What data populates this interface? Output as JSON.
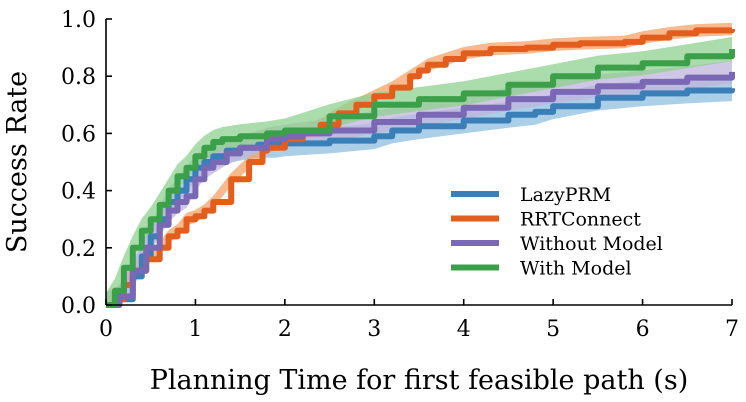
{
  "chart_data": {
    "type": "line",
    "title": "",
    "xlabel": "Planning Time for first feasible path (s)",
    "ylabel": "Success Rate",
    "xlim": [
      0,
      7
    ],
    "ylim": [
      0,
      1.0
    ],
    "xticks": [
      0,
      1,
      2,
      3,
      4,
      5,
      6,
      7
    ],
    "yticks": [
      0.0,
      0.2,
      0.4,
      0.6,
      0.8,
      1.0
    ],
    "xtick_labels": [
      "0",
      "1",
      "2",
      "3",
      "4",
      "5",
      "6",
      "7"
    ],
    "ytick_labels": [
      "0.0",
      "0.2",
      "0.4",
      "0.6",
      "0.8",
      "1.0"
    ],
    "grid": false,
    "legend_position": "lower-right",
    "series": [
      {
        "name": "LazyPRM",
        "color": "#3a7fb8",
        "band_color": "#8fbfdf",
        "band_halfwidth": 0.045,
        "x": [
          0,
          0.15,
          0.3,
          0.4,
          0.5,
          0.6,
          0.7,
          0.8,
          0.9,
          1.0,
          1.1,
          1.2,
          1.35,
          1.5,
          1.7,
          1.9,
          2.0,
          2.5,
          3.0,
          3.2,
          3.5,
          4.0,
          4.5,
          4.8,
          5.0,
          5.5,
          6.0,
          6.5,
          7.0
        ],
        "values": [
          0.0,
          0.02,
          0.1,
          0.17,
          0.24,
          0.3,
          0.36,
          0.4,
          0.44,
          0.48,
          0.5,
          0.52,
          0.54,
          0.55,
          0.56,
          0.56,
          0.565,
          0.575,
          0.59,
          0.61,
          0.625,
          0.645,
          0.665,
          0.675,
          0.695,
          0.725,
          0.74,
          0.75,
          0.758
        ]
      },
      {
        "name": "RRTConnect",
        "color": "#e35d1d",
        "band_color": "#f4a36a",
        "band_halfwidth": 0.022,
        "x": [
          0,
          0.1,
          0.2,
          0.3,
          0.45,
          0.6,
          0.7,
          0.8,
          0.9,
          1.0,
          1.1,
          1.2,
          1.4,
          1.6,
          1.75,
          1.8,
          2.0,
          2.2,
          2.4,
          2.6,
          2.8,
          3.0,
          3.2,
          3.4,
          3.5,
          3.6,
          3.8,
          4.0,
          4.3,
          4.7,
          5.0,
          5.3,
          5.8,
          6.0,
          6.3,
          6.6,
          7.0
        ],
        "values": [
          0.0,
          0.02,
          0.07,
          0.12,
          0.16,
          0.2,
          0.24,
          0.26,
          0.3,
          0.31,
          0.33,
          0.36,
          0.44,
          0.5,
          0.54,
          0.55,
          0.58,
          0.6,
          0.63,
          0.67,
          0.7,
          0.73,
          0.76,
          0.8,
          0.82,
          0.84,
          0.86,
          0.88,
          0.895,
          0.9,
          0.91,
          0.915,
          0.92,
          0.935,
          0.95,
          0.96,
          0.965
        ]
      },
      {
        "name": "Without Model",
        "color": "#7a68b5",
        "band_color": "#bfb4dc",
        "band_halfwidth": 0.04,
        "x": [
          0,
          0.15,
          0.3,
          0.45,
          0.6,
          0.7,
          0.8,
          0.9,
          1.0,
          1.1,
          1.2,
          1.35,
          1.5,
          1.8,
          2.0,
          2.2,
          2.5,
          3.0,
          3.5,
          4.0,
          4.5,
          5.0,
          5.5,
          6.0,
          6.5,
          7.0
        ],
        "values": [
          0.0,
          0.03,
          0.12,
          0.2,
          0.28,
          0.33,
          0.36,
          0.38,
          0.44,
          0.48,
          0.5,
          0.53,
          0.55,
          0.58,
          0.59,
          0.6,
          0.61,
          0.64,
          0.665,
          0.69,
          0.72,
          0.745,
          0.765,
          0.78,
          0.795,
          0.815
        ]
      },
      {
        "name": "With Model",
        "color": "#3ba049",
        "band_color": "#8fd08f",
        "band_halfwidth": 0.042,
        "x": [
          0,
          0.1,
          0.2,
          0.3,
          0.4,
          0.5,
          0.6,
          0.7,
          0.8,
          0.9,
          1.0,
          1.1,
          1.2,
          1.3,
          1.5,
          1.8,
          2.0,
          2.5,
          3.0,
          3.5,
          4.0,
          4.5,
          5.0,
          5.5,
          6.0,
          6.5,
          7.0
        ],
        "values": [
          0.0,
          0.05,
          0.13,
          0.2,
          0.26,
          0.3,
          0.35,
          0.4,
          0.45,
          0.48,
          0.52,
          0.55,
          0.57,
          0.58,
          0.59,
          0.6,
          0.61,
          0.66,
          0.7,
          0.72,
          0.74,
          0.77,
          0.8,
          0.83,
          0.845,
          0.87,
          0.895
        ]
      }
    ]
  }
}
